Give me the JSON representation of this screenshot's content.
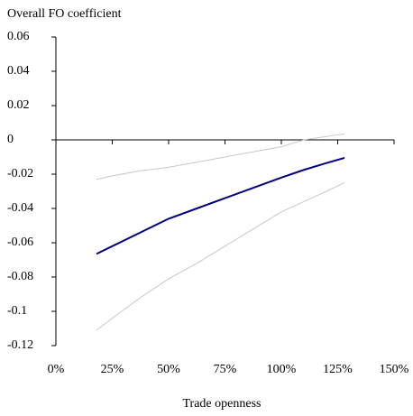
{
  "chart_data": {
    "type": "line",
    "y_label": "Overall FO coefficient",
    "x_label": "Trade openness",
    "x": [
      0.18,
      0.25,
      0.375,
      0.5,
      0.625,
      0.75,
      0.875,
      1.0,
      1.1,
      1.2,
      1.28
    ],
    "series": [
      {
        "color": "#c8c8c8",
        "values": [
          -0.023,
          -0.021,
          -0.018,
          -0.016,
          -0.013,
          -0.01,
          -0.007,
          -0.004,
          0.0,
          0.002,
          0.0035
        ]
      },
      {
        "color": "#c8c8c8",
        "values": [
          -0.111,
          -0.104,
          -0.092,
          -0.081,
          -0.072,
          -0.062,
          -0.052,
          -0.042,
          -0.036,
          -0.03,
          -0.025
        ]
      },
      {
        "color": "#000080",
        "values": [
          -0.0665,
          -0.062,
          -0.054,
          -0.046,
          -0.04,
          -0.034,
          -0.028,
          -0.022,
          -0.0175,
          -0.0135,
          -0.0105
        ]
      }
    ],
    "xlim": [
      0,
      1.5
    ],
    "xticks": [
      {
        "value": 0,
        "label": "0%"
      },
      {
        "value": 0.25,
        "label": "25%"
      },
      {
        "value": 0.5,
        "label": "50%"
      },
      {
        "value": 0.75,
        "label": "75%"
      },
      {
        "value": 1.0,
        "label": "100%"
      },
      {
        "value": 1.25,
        "label": "125%"
      },
      {
        "value": 1.5,
        "label": "150%"
      }
    ],
    "ylim": [
      -0.12,
      0.06
    ],
    "yticks": [
      -0.12,
      -0.1,
      -0.08,
      -0.06,
      -0.04,
      -0.02,
      0,
      0.02,
      0.04,
      0.06
    ]
  }
}
